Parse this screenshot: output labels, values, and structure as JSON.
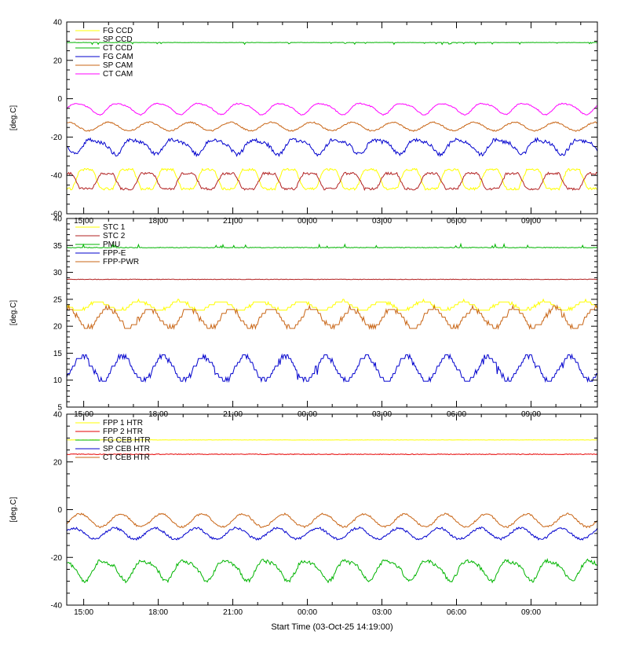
{
  "figure": {
    "xlabel": "Start Time (03-Oct-25 14:19:00)",
    "background": "#ffffff",
    "axis_color": "#000000"
  },
  "x_axis": {
    "tick_labels": [
      "15:00",
      "18:00",
      "21:00",
      "00:00",
      "03:00",
      "06:00",
      "09:00"
    ],
    "tick_hours": [
      15,
      18,
      21,
      24,
      27,
      30,
      33
    ],
    "start_hour": 14.317,
    "end_hour": 35.67,
    "minor_step_h": 1
  },
  "chart_data": [
    {
      "type": "line",
      "title": "",
      "ylabel": "[deg.C]",
      "ylim": [
        -60,
        40
      ],
      "yticks": [
        40,
        20,
        0,
        -20,
        -40,
        -60
      ],
      "yminor": 5,
      "legend_position": "top-left",
      "series": [
        {
          "name": "FG CCD",
          "color": "#ffff00",
          "wave": "trap",
          "mean": -42,
          "amp": 5,
          "period_h": 1.633,
          "phase": 0.0,
          "noise": 0.6
        },
        {
          "name": "SP CCD",
          "color": "#b22222",
          "wave": "trap",
          "mean": -43,
          "amp": 4,
          "period_h": 1.633,
          "phase": 0.5,
          "noise": 0.6
        },
        {
          "name": "CT CCD",
          "color": "#00b400",
          "wave": "flat",
          "mean": 29.3,
          "amp": 0,
          "noise": 0.08,
          "spikes": {
            "prob": 0.05,
            "size": -1.0
          }
        },
        {
          "name": "FG CAM",
          "color": "#0000cd",
          "wave": "sine",
          "mean": -24.5,
          "amp": 3.5,
          "period_h": 1.633,
          "phase": 0.8,
          "noise": 1.0,
          "harm2": 0.3
        },
        {
          "name": "SP CAM",
          "color": "#c86414",
          "wave": "sine",
          "mean": -14.5,
          "amp": 2.2,
          "period_h": 1.633,
          "phase": 0.45,
          "noise": 0.35
        },
        {
          "name": "CT CAM",
          "color": "#ff00ff",
          "wave": "sine",
          "mean": -5,
          "amp": 2.8,
          "period_h": 1.633,
          "phase": 0.2,
          "noise": 0.3,
          "harm2": 0.2
        }
      ]
    },
    {
      "type": "line",
      "title": "",
      "ylabel": "[deg.C]",
      "ylim": [
        5,
        40
      ],
      "yticks": [
        40,
        35,
        30,
        25,
        20,
        15,
        10,
        5
      ],
      "yminor": 1,
      "legend_position": "top-left",
      "series": [
        {
          "name": "STC 1",
          "color": "#ffff00",
          "wave": "sine",
          "mean": 23.8,
          "amp": 0.8,
          "period_h": 1.633,
          "phase": 0.7,
          "quant": 0.5,
          "noise": 0.2
        },
        {
          "name": "STC 2",
          "color": "#b22222",
          "wave": "flat",
          "mean": 28.7,
          "amp": 0,
          "noise": 0.05
        },
        {
          "name": "PMU",
          "color": "#00b400",
          "wave": "flat",
          "mean": 34.6,
          "amp": 0,
          "noise": 0.06,
          "spikes": {
            "prob": 0.05,
            "size": 0.7
          }
        },
        {
          "name": "FPP-E",
          "color": "#0000cd",
          "wave": "sine",
          "mean": 12.2,
          "amp": 2.3,
          "period_h": 1.633,
          "phase": 0.1,
          "quant": 0.7,
          "noise": 0.35,
          "spikes": {
            "prob": 0.02,
            "size": -1.6
          }
        },
        {
          "name": "FPP-PWR",
          "color": "#c86414",
          "wave": "sine",
          "mean": 21.5,
          "amp": 1.8,
          "period_h": 1.633,
          "phase": 0.45,
          "quant": 0.7,
          "noise": 0.35
        }
      ]
    },
    {
      "type": "line",
      "title": "",
      "ylabel": "[deg.C]",
      "ylim": [
        -40,
        40
      ],
      "yticks": [
        40,
        20,
        0,
        -20,
        -40
      ],
      "yminor": 5,
      "legend_position": "top-left",
      "series": [
        {
          "name": "FPP 1 HTR",
          "color": "#ffff00",
          "wave": "flat",
          "mean": 29.2,
          "amp": 0,
          "noise": 0.08
        },
        {
          "name": "FPP 2 HTR",
          "color": "#e60000",
          "wave": "flat",
          "mean": 23.2,
          "amp": 0,
          "noise": 0.15
        },
        {
          "name": "FG CEB HTR",
          "color": "#00b400",
          "wave": "sine",
          "mean": -25,
          "amp": 4,
          "period_h": 1.633,
          "phase": 0.55,
          "noise": 0.8,
          "harm2": 0.25
        },
        {
          "name": "SP CEB HTR",
          "color": "#0000cd",
          "wave": "sine",
          "mean": -10,
          "amp": 2.3,
          "period_h": 1.633,
          "phase": 0.3,
          "noise": 0.5
        },
        {
          "name": "CT CEB HTR",
          "color": "#c86414",
          "wave": "sine",
          "mean": -4.5,
          "amp": 2.7,
          "period_h": 1.633,
          "phase": 0.15,
          "noise": 0.4
        }
      ]
    }
  ]
}
